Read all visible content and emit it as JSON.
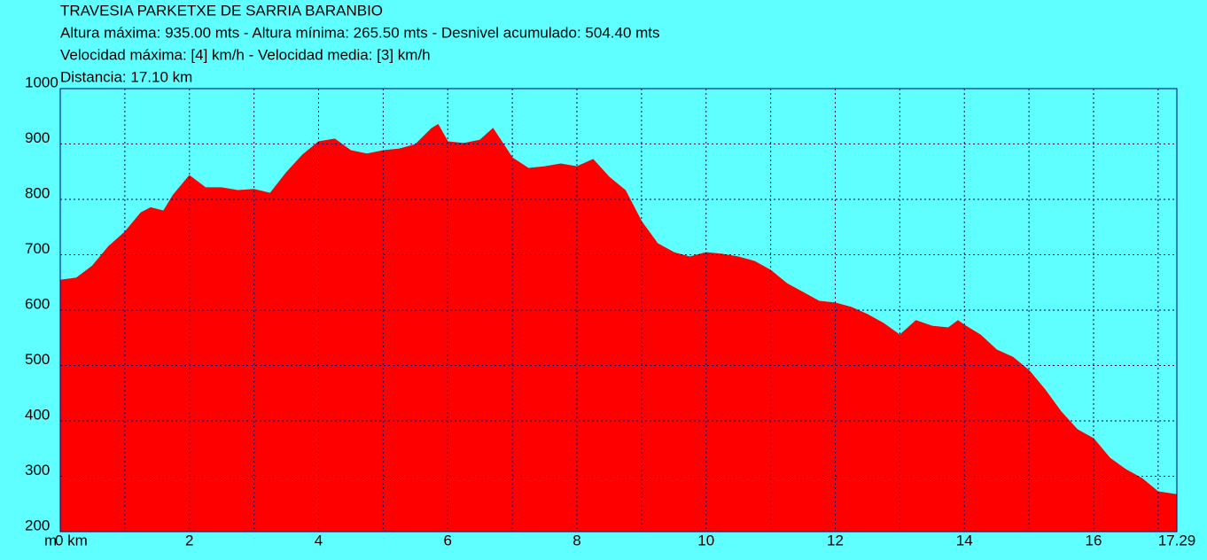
{
  "chart_data": {
    "type": "area",
    "title": "TRAVESIA PARKETXE DE SARRIA BARANBIO",
    "subtitles": [
      "Altura máxima: 935.00 mts - Altura mínima: 265.50 mts - Desnivel acumulado: 504.40 mts",
      "Velocidad máxima: [4] km/h - Velocidad media: [3] km/h",
      "Distancia: 17.10 km"
    ],
    "y_label": "m",
    "x": [
      0,
      0.25,
      0.5,
      0.75,
      1.0,
      1.25,
      1.4,
      1.6,
      1.75,
      2.0,
      2.25,
      2.5,
      2.75,
      3.0,
      3.25,
      3.5,
      3.75,
      4.0,
      4.25,
      4.5,
      4.75,
      5.0,
      5.25,
      5.5,
      5.75,
      5.85,
      6.0,
      6.25,
      6.5,
      6.7,
      7.0,
      7.25,
      7.5,
      7.75,
      8.0,
      8.25,
      8.5,
      8.75,
      9.0,
      9.25,
      9.5,
      9.75,
      10.0,
      10.25,
      10.5,
      10.75,
      11.0,
      11.25,
      11.5,
      11.75,
      12.0,
      12.25,
      12.5,
      12.75,
      13.0,
      13.25,
      13.5,
      13.75,
      13.9,
      14.0,
      14.25,
      14.5,
      14.75,
      15.0,
      15.25,
      15.5,
      15.75,
      16.0,
      16.25,
      16.5,
      16.75,
      17.0,
      17.29
    ],
    "values": [
      654,
      658,
      680,
      715,
      741,
      776,
      785,
      779,
      808,
      843,
      821,
      821,
      816,
      818,
      811,
      848,
      880,
      904,
      909,
      888,
      882,
      888,
      891,
      899,
      928,
      935,
      904,
      901,
      907,
      928,
      875,
      856,
      859,
      864,
      859,
      872,
      840,
      816,
      760,
      720,
      704,
      696,
      704,
      701,
      696,
      688,
      672,
      648,
      632,
      616,
      613,
      605,
      592,
      576,
      555,
      581,
      571,
      568,
      581,
      573,
      555,
      528,
      515,
      491,
      456,
      416,
      384,
      368,
      333,
      312,
      296,
      272,
      267
    ],
    "color": "#ff0000",
    "background": "#60ffff",
    "grid_color": "#000080",
    "xlim": [
      0,
      17.29
    ],
    "xticks": [
      {
        "value": 0,
        "label": "0 km"
      },
      2,
      4,
      6,
      8,
      10,
      12,
      14,
      16,
      17.29
    ],
    "xgrid": [
      1,
      2,
      3,
      4,
      5,
      6,
      7,
      8,
      9,
      10,
      11,
      12,
      13,
      14,
      15,
      16,
      17
    ],
    "ylim": [
      200,
      1000
    ],
    "yticks": [
      200,
      300,
      400,
      500,
      600,
      700,
      800,
      900,
      1000
    ],
    "grid": true
  }
}
